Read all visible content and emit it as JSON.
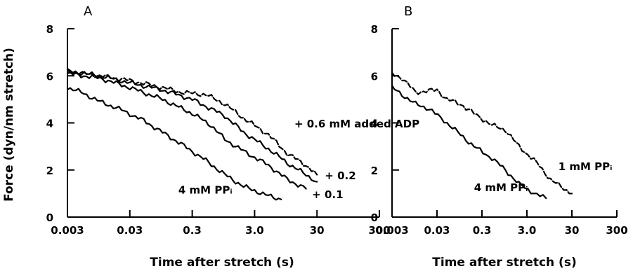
{
  "chart_data": [
    {
      "panel": "A",
      "type": "line",
      "xlabel": "Time after stretch (s)",
      "ylabel": "Force (dyn/nm stretch)",
      "x_scale": "log",
      "xlim": [
        0.003,
        300
      ],
      "ylim": [
        0,
        8
      ],
      "xticks": [
        "0.003",
        "0.03",
        "0.3",
        "3.0",
        "30",
        "300"
      ],
      "yticks": [
        "0",
        "2",
        "4",
        "6",
        "8"
      ],
      "series": [
        {
          "name": "4 mM PPᵢ",
          "style": "solid",
          "x": [
            0.003,
            0.005,
            0.01,
            0.02,
            0.05,
            0.1,
            0.2,
            0.5,
            1,
            2,
            5,
            8
          ],
          "y": [
            5.5,
            5.3,
            4.9,
            4.6,
            4.1,
            3.6,
            3.1,
            2.4,
            1.8,
            1.3,
            0.9,
            0.75
          ]
        },
        {
          "name": "+ 0.1",
          "style": "solid",
          "x": [
            0.003,
            0.01,
            0.03,
            0.1,
            0.3,
            0.6,
            1,
            2,
            5,
            10,
            20
          ],
          "y": [
            6.1,
            5.9,
            5.5,
            5.0,
            4.4,
            3.9,
            3.3,
            2.8,
            2.2,
            1.6,
            1.2
          ]
        },
        {
          "name": "+ 0.2",
          "style": "solid",
          "x": [
            0.003,
            0.01,
            0.03,
            0.1,
            0.3,
            1,
            2,
            5,
            10,
            20,
            30
          ],
          "y": [
            6.2,
            6.0,
            5.7,
            5.4,
            5.0,
            4.3,
            3.6,
            2.9,
            2.3,
            1.8,
            1.5
          ]
        },
        {
          "name": "+ 0.6 mM added ADP",
          "style": "dashed",
          "x": [
            0.003,
            0.01,
            0.03,
            0.1,
            0.2,
            0.5,
            1,
            2,
            5,
            10,
            20,
            30
          ],
          "y": [
            6.2,
            6.0,
            5.8,
            5.5,
            5.3,
            5.2,
            4.8,
            4.2,
            3.5,
            2.7,
            2.2,
            1.8
          ]
        }
      ],
      "annotations": [
        {
          "label": "+ 0.6 mM added ADP",
          "x": 13,
          "y": 3.8
        },
        {
          "label": "+ 0.2",
          "x": 40,
          "y": 1.6
        },
        {
          "label": "+ 0.1",
          "x": 25,
          "y": 0.8
        },
        {
          "label": "4 mM PPᵢ",
          "x": 0.18,
          "y": 1.0
        }
      ]
    },
    {
      "panel": "B",
      "type": "line",
      "xlabel": "Time after stretch (s)",
      "ylabel": "",
      "x_scale": "log",
      "xlim": [
        0.003,
        300
      ],
      "ylim": [
        0,
        8
      ],
      "xticks": [
        "0.003",
        "0.03",
        "0.3",
        "3.0",
        "30",
        "300"
      ],
      "yticks": [
        "0",
        "2",
        "4",
        "6",
        "8"
      ],
      "series": [
        {
          "name": "4 mM PPᵢ",
          "style": "solid",
          "x": [
            0.003,
            0.005,
            0.01,
            0.02,
            0.05,
            0.1,
            0.2,
            0.5,
            1,
            2,
            5,
            8
          ],
          "y": [
            5.5,
            5.2,
            4.8,
            4.6,
            4.0,
            3.5,
            3.0,
            2.5,
            2.0,
            1.4,
            0.95,
            0.8
          ]
        },
        {
          "name": "1 mM PPᵢ",
          "style": "dashed",
          "x": [
            0.003,
            0.005,
            0.01,
            0.03,
            0.05,
            0.1,
            0.2,
            0.5,
            1,
            2,
            5,
            10,
            20,
            30
          ],
          "y": [
            6.1,
            5.9,
            5.3,
            5.4,
            5.0,
            4.8,
            4.4,
            3.9,
            3.7,
            3.0,
            2.3,
            1.6,
            1.2,
            1.0
          ]
        }
      ],
      "annotations": [
        {
          "label": "1 mM PPᵢ",
          "x": 15,
          "y": 2.0
        },
        {
          "label": "4 mM PPᵢ",
          "x": 0.2,
          "y": 1.1
        }
      ]
    }
  ]
}
